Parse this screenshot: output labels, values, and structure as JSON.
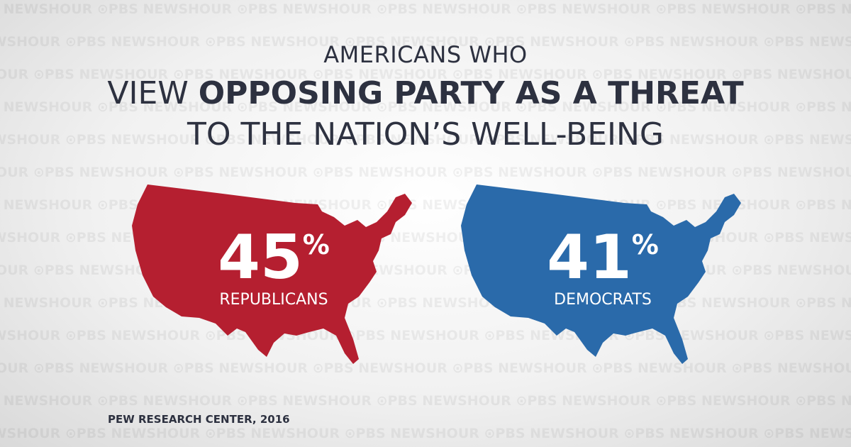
{
  "watermark": "PBS NEWSHOUR",
  "title": {
    "line1": "AMERICANS WHO",
    "line2_prefix": "VIEW ",
    "line2_bold": "OPPOSING PARTY AS A THREAT",
    "line3": "TO THE NATION’S WELL-BEING"
  },
  "groups": [
    {
      "value": "45",
      "unit": "%",
      "label": "REPUBLICANS",
      "color": "#b51f30"
    },
    {
      "value": "41",
      "unit": "%",
      "label": "DEMOCRATS",
      "color": "#2a6aaa"
    }
  ],
  "source": "PEW RESEARCH CENTER, 2016"
}
